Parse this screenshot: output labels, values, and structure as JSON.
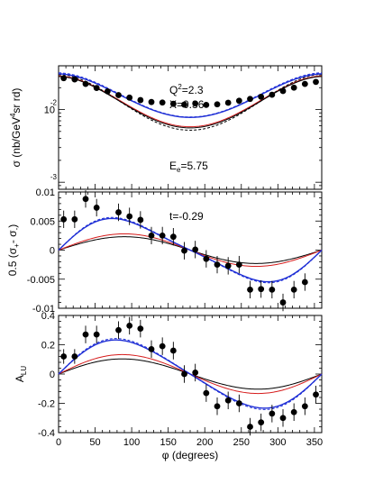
{
  "colors": {
    "black": "#000000",
    "red": "#d61c1c",
    "blue": "#1f2fd6"
  },
  "chart_data": [
    {
      "type": "scatter",
      "panel": "top",
      "ylabel_parts": {
        "pre": "σ (nb/GeV",
        "sup": "4",
        "post": "sr rd)"
      },
      "yscale": "log",
      "ylim": [
        0.0008,
        0.04
      ],
      "xlim": [
        0,
        360
      ],
      "ytick_labels": [
        {
          "value": 0.01,
          "base": "10",
          "exp": ""
        },
        {
          "value": 0.001,
          "base": "",
          "exp": "-3"
        }
      ],
      "ytick_exp_top": {
        "value": 0.01,
        "label": "-2"
      },
      "annotations": {
        "q2": {
          "base": "Q",
          "sup": "2",
          "rest": "=2.3"
        },
        "x": "X=0.36",
        "e": {
          "base": "E",
          "sub": "e",
          "rest": "=5.75"
        }
      },
      "points": {
        "x": [
          7,
          22,
          37,
          52,
          67,
          82,
          97,
          112,
          127,
          142,
          157,
          172,
          187,
          202,
          217,
          232,
          247,
          262,
          277,
          292,
          307,
          322,
          337,
          352
        ],
        "y": [
          0.027,
          0.026,
          0.0225,
          0.0198,
          0.0178,
          0.0158,
          0.0146,
          0.0135,
          0.0127,
          0.0125,
          0.012,
          0.0117,
          0.0121,
          0.0116,
          0.0118,
          0.0124,
          0.0132,
          0.014,
          0.015,
          0.016,
          0.018,
          0.02,
          0.0225,
          0.024
        ]
      },
      "curves": [
        {
          "color": "red",
          "dash": false,
          "max": 0.029,
          "min": 0.0058,
          "dip_center": 180,
          "width": 1
        },
        {
          "color": "black",
          "dash": false,
          "max": 0.0285,
          "min": 0.0056,
          "dip_center": 180,
          "width": 1
        },
        {
          "color": "black",
          "dash": true,
          "max": 0.0305,
          "min": 0.0052,
          "dip_center": 180,
          "width": 1
        },
        {
          "color": "blue",
          "dash": false,
          "max": 0.031,
          "min": 0.0078,
          "dip_center": 180,
          "width": 1.4
        },
        {
          "color": "blue",
          "dash": true,
          "max": 0.032,
          "min": 0.0079,
          "dip_center": 180,
          "width": 1
        }
      ]
    },
    {
      "type": "scatter",
      "panel": "middle",
      "ylabel_parts": {
        "pre": "0.5 (σ",
        "sub1": "+",
        "mid": "- σ",
        "sub2": "-",
        "post": ")"
      },
      "ylim": [
        -0.01,
        0.01
      ],
      "xlim": [
        0,
        360
      ],
      "yticks": [
        -0.01,
        -0.005,
        0,
        0.005,
        0.01
      ],
      "ytick_labels": [
        "-0.01",
        "-0.005",
        "0",
        "0.005",
        "0.01"
      ],
      "annotation": "t=-0.29",
      "points": {
        "x": [
          7,
          22,
          37,
          52,
          82,
          97,
          112,
          127,
          142,
          157,
          172,
          187,
          202,
          217,
          232,
          247,
          262,
          277,
          292,
          307,
          322,
          337
        ],
        "y": [
          0.0053,
          0.0053,
          0.0088,
          0.0073,
          0.0065,
          0.0058,
          0.0052,
          0.0025,
          0.0025,
          0.0023,
          -0.0001,
          0.0001,
          -0.0015,
          -0.0025,
          -0.0027,
          -0.0025,
          -0.0068,
          -0.0067,
          -0.0068,
          -0.009,
          -0.0068,
          -0.0055
        ],
        "err": [
          0.0015,
          0.0015,
          0.0015,
          0.0015,
          0.0015,
          0.0015,
          0.0015,
          0.0015,
          0.0015,
          0.0015,
          0.0015,
          0.0015,
          0.0015,
          0.0015,
          0.0015,
          0.0015,
          0.0015,
          0.0015,
          0.0015,
          0.0015,
          0.0015,
          0.0015
        ]
      },
      "curves": [
        {
          "color": "black",
          "dash": false,
          "amplitude": 0.0023,
          "peak": 85,
          "width": 1
        },
        {
          "color": "red",
          "dash": false,
          "amplitude": 0.0028,
          "peak": 85,
          "width": 1
        },
        {
          "color": "blue",
          "dash": false,
          "amplitude": 0.006,
          "peak": 50,
          "width": 1.4
        },
        {
          "color": "blue",
          "dash": true,
          "amplitude": 0.0062,
          "peak": 50,
          "width": 1
        }
      ]
    },
    {
      "type": "scatter",
      "panel": "bottom",
      "ylabel_parts": {
        "pre": "A",
        "sub": "LU"
      },
      "xlabel": "φ (degrees)",
      "ylim": [
        -0.4,
        0.4
      ],
      "xlim": [
        0,
        360
      ],
      "yticks": [
        -0.4,
        -0.2,
        0,
        0.2,
        0.4
      ],
      "ytick_labels": [
        "-0.4",
        "-0.2",
        "0",
        "0.2",
        "0.4"
      ],
      "xticks": [
        0,
        50,
        100,
        150,
        200,
        250,
        300,
        350
      ],
      "xtick_labels": [
        "0",
        "50",
        "100",
        "150",
        "200",
        "250",
        "300",
        "350"
      ],
      "points": {
        "x": [
          7,
          22,
          37,
          52,
          82,
          97,
          112,
          127,
          142,
          157,
          172,
          187,
          202,
          217,
          232,
          247,
          262,
          277,
          292,
          307,
          322,
          337,
          352
        ],
        "y": [
          0.12,
          0.12,
          0.27,
          0.27,
          0.3,
          0.33,
          0.31,
          0.17,
          0.19,
          0.16,
          0.0,
          0.01,
          -0.13,
          -0.22,
          -0.18,
          -0.2,
          -0.36,
          -0.33,
          -0.27,
          -0.3,
          -0.26,
          -0.22,
          -0.14
        ],
        "err": [
          0.05,
          0.05,
          0.06,
          0.06,
          0.06,
          0.06,
          0.06,
          0.06,
          0.06,
          0.06,
          0.06,
          0.06,
          0.06,
          0.06,
          0.06,
          0.06,
          0.06,
          0.06,
          0.06,
          0.06,
          0.06,
          0.06,
          0.06
        ]
      },
      "curves": [
        {
          "color": "black",
          "dash": false,
          "amplitude": 0.105,
          "peak": 100,
          "width": 1
        },
        {
          "color": "red",
          "dash": false,
          "amplitude": 0.135,
          "peak": 95,
          "width": 1
        },
        {
          "color": "blue",
          "dash": false,
          "amplitude": 0.245,
          "peak": 82,
          "width": 1.4
        },
        {
          "color": "blue",
          "dash": true,
          "amplitude": 0.255,
          "peak": 82,
          "width": 1
        }
      ]
    }
  ]
}
